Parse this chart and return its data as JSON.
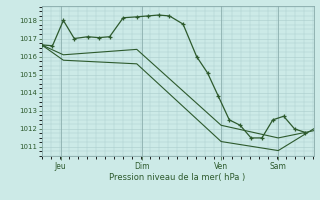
{
  "background_color": "#cceae7",
  "grid_color": "#aacccc",
  "line_color": "#2d5a2d",
  "spine_color": "#88aaaa",
  "title": "Pression niveau de la mer( hPa )",
  "ylim": [
    1010.5,
    1018.8
  ],
  "yticks": [
    1011,
    1012,
    1013,
    1014,
    1015,
    1016,
    1017,
    1018
  ],
  "xlim": [
    0,
    100
  ],
  "x_day_labels": [
    {
      "label": "Jeu",
      "x": 7
    },
    {
      "label": "Dim",
      "x": 37
    },
    {
      "label": "Ven",
      "x": 66
    },
    {
      "label": "Sam",
      "x": 87
    }
  ],
  "x_vlines": [
    7,
    37,
    66,
    87
  ],
  "series1_x": [
    0,
    4,
    8,
    12,
    17,
    21,
    25,
    30,
    35,
    39,
    43,
    47,
    52,
    57,
    61,
    65,
    69,
    73,
    77,
    81,
    85,
    89,
    93,
    97
  ],
  "series1_y": [
    1016.65,
    1016.6,
    1018.0,
    1017.0,
    1017.1,
    1017.05,
    1017.1,
    1018.15,
    1018.2,
    1018.25,
    1018.3,
    1018.25,
    1017.8,
    1016.0,
    1015.1,
    1013.8,
    1012.5,
    1012.2,
    1011.5,
    1011.5,
    1012.5,
    1012.7,
    1012.0,
    1011.8
  ],
  "series2_x": [
    0,
    8,
    35,
    66,
    87,
    100
  ],
  "series2_y": [
    1016.65,
    1016.1,
    1016.4,
    1012.2,
    1011.5,
    1011.9
  ],
  "series3_x": [
    0,
    8,
    35,
    66,
    87,
    100
  ],
  "series3_y": [
    1016.65,
    1015.8,
    1015.6,
    1011.3,
    1010.8,
    1012.0
  ]
}
